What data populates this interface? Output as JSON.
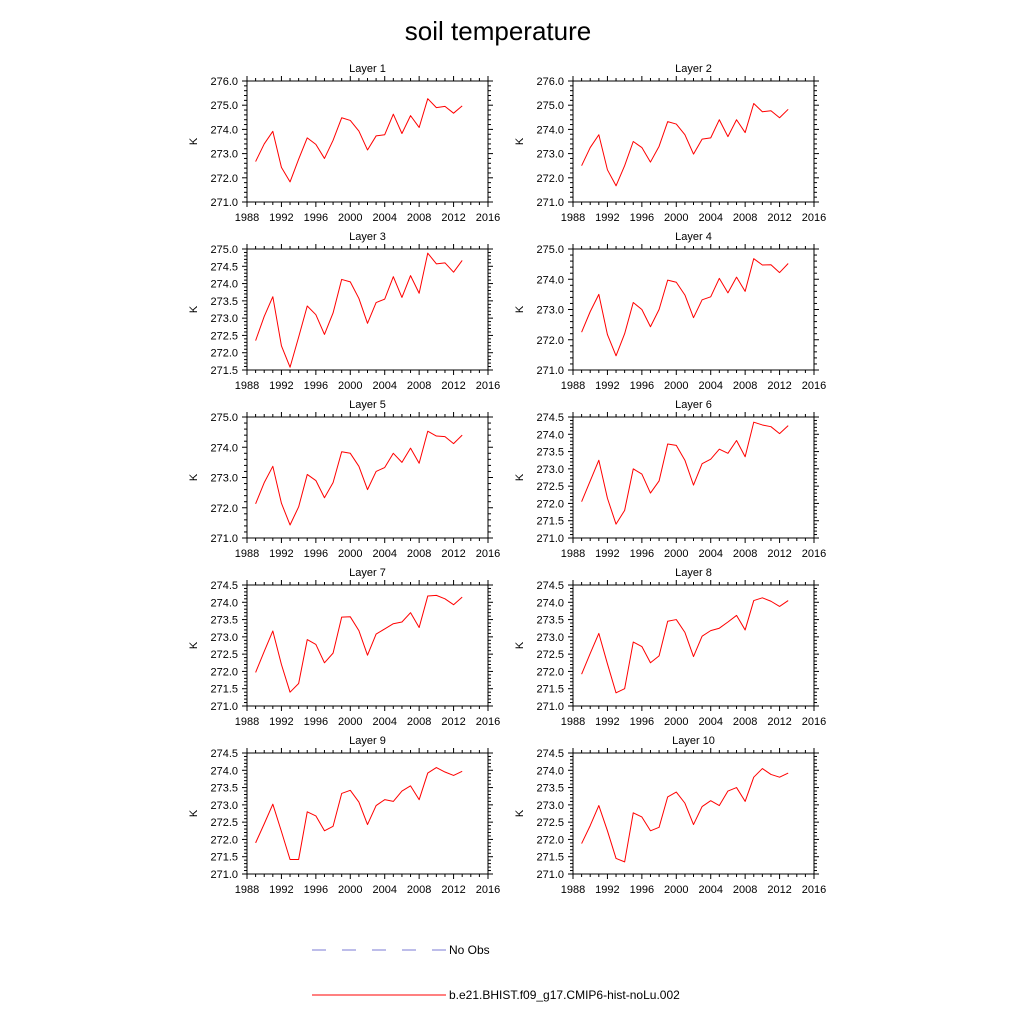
{
  "title": "soil temperature",
  "colors": {
    "model_line": "#ff0000",
    "obs_line": "#7b7bd6",
    "axis": "#000000"
  },
  "legend": [
    {
      "label": "No Obs",
      "style": "dashed",
      "color": "#7b7bd6"
    },
    {
      "label": "b.e21.BHIST.f09_g17.CMIP6-hist-noLu.002",
      "style": "solid",
      "color": "#ff0000"
    }
  ],
  "chart_data": [
    {
      "type": "line",
      "title": "Layer 1",
      "ylabel": "K",
      "x": [
        1989,
        1990,
        1991,
        1992,
        1993,
        1994,
        1995,
        1996,
        1997,
        1998,
        1999,
        2000,
        2001,
        2002,
        2003,
        2004,
        2005,
        2006,
        2007,
        2008,
        2009,
        2010,
        2011,
        2012,
        2013
      ],
      "xlim": [
        1988,
        2016
      ],
      "xticks": [
        1988,
        1992,
        1996,
        2000,
        2004,
        2008,
        2012,
        2016
      ],
      "ylim": [
        271,
        276
      ],
      "yticks": [
        "271.0",
        "272.0",
        "273.0",
        "274.0",
        "275.0",
        "276.0"
      ],
      "series": [
        {
          "name": "b.e21.BHIST.f09_g17.CMIP6-hist-noLu.002",
          "values": [
            272.67,
            273.4,
            273.92,
            272.43,
            271.83,
            272.77,
            273.65,
            273.38,
            272.8,
            273.55,
            274.48,
            274.37,
            273.93,
            273.15,
            273.73,
            273.78,
            274.63,
            273.83,
            274.57,
            274.08,
            275.27,
            274.9,
            274.95,
            274.67,
            274.97
          ]
        }
      ]
    },
    {
      "type": "line",
      "title": "Layer 2",
      "ylabel": "K",
      "x": [
        1989,
        1990,
        1991,
        1992,
        1993,
        1994,
        1995,
        1996,
        1997,
        1998,
        1999,
        2000,
        2001,
        2002,
        2003,
        2004,
        2005,
        2006,
        2007,
        2008,
        2009,
        2010,
        2011,
        2012,
        2013
      ],
      "xlim": [
        1988,
        2016
      ],
      "xticks": [
        1988,
        1992,
        1996,
        2000,
        2004,
        2008,
        2012,
        2016
      ],
      "ylim": [
        271,
        276
      ],
      "yticks": [
        "271.0",
        "272.0",
        "273.0",
        "274.0",
        "275.0",
        "276.0"
      ],
      "series": [
        {
          "name": "b.e21.BHIST.f09_g17.CMIP6-hist-noLu.002",
          "values": [
            272.5,
            273.25,
            273.78,
            272.33,
            271.67,
            272.5,
            273.5,
            273.25,
            272.65,
            273.3,
            274.32,
            274.22,
            273.78,
            272.98,
            273.6,
            273.65,
            274.4,
            273.7,
            274.4,
            273.87,
            275.07,
            274.73,
            274.77,
            274.48,
            274.83
          ]
        }
      ]
    },
    {
      "type": "line",
      "title": "Layer 3",
      "ylabel": "K",
      "x": [
        1989,
        1990,
        1991,
        1992,
        1993,
        1994,
        1995,
        1996,
        1997,
        1998,
        1999,
        2000,
        2001,
        2002,
        2003,
        2004,
        2005,
        2006,
        2007,
        2008,
        2009,
        2010,
        2011,
        2012,
        2013
      ],
      "xlim": [
        1988,
        2016
      ],
      "xticks": [
        1988,
        1992,
        1996,
        2000,
        2004,
        2008,
        2012,
        2016
      ],
      "ylim": [
        271.5,
        275
      ],
      "yticks": [
        "271.5",
        "272.0",
        "272.5",
        "273.0",
        "273.5",
        "274.0",
        "274.5",
        "275.0"
      ],
      "series": [
        {
          "name": "b.e21.BHIST.f09_g17.CMIP6-hist-noLu.002",
          "values": [
            272.35,
            273.05,
            273.62,
            272.2,
            271.58,
            272.45,
            273.35,
            273.1,
            272.53,
            273.15,
            274.12,
            274.05,
            273.57,
            272.85,
            273.45,
            273.55,
            274.2,
            273.6,
            274.23,
            273.72,
            274.88,
            274.57,
            274.6,
            274.33,
            274.67
          ]
        }
      ]
    },
    {
      "type": "line",
      "title": "Layer 4",
      "ylabel": "K",
      "x": [
        1989,
        1990,
        1991,
        1992,
        1993,
        1994,
        1995,
        1996,
        1997,
        1998,
        1999,
        2000,
        2001,
        2002,
        2003,
        2004,
        2005,
        2006,
        2007,
        2008,
        2009,
        2010,
        2011,
        2012,
        2013
      ],
      "xlim": [
        1988,
        2016
      ],
      "xticks": [
        1988,
        1992,
        1996,
        2000,
        2004,
        2008,
        2012,
        2016
      ],
      "ylim": [
        271,
        275
      ],
      "yticks": [
        "271.0",
        "272.0",
        "273.0",
        "274.0",
        "275.0"
      ],
      "series": [
        {
          "name": "b.e21.BHIST.f09_g17.CMIP6-hist-noLu.002",
          "values": [
            272.25,
            272.93,
            273.5,
            272.17,
            271.47,
            272.2,
            273.23,
            273.0,
            272.43,
            273.0,
            273.97,
            273.9,
            273.48,
            272.73,
            273.32,
            273.42,
            274.03,
            273.55,
            274.07,
            273.6,
            274.68,
            274.47,
            274.48,
            274.22,
            274.52
          ]
        }
      ]
    },
    {
      "type": "line",
      "title": "Layer 5",
      "ylabel": "K",
      "x": [
        1989,
        1990,
        1991,
        1992,
        1993,
        1994,
        1995,
        1996,
        1997,
        1998,
        1999,
        2000,
        2001,
        2002,
        2003,
        2004,
        2005,
        2006,
        2007,
        2008,
        2009,
        2010,
        2011,
        2012,
        2013
      ],
      "xlim": [
        1988,
        2016
      ],
      "xticks": [
        1988,
        1992,
        1996,
        2000,
        2004,
        2008,
        2012,
        2016
      ],
      "ylim": [
        271,
        275
      ],
      "yticks": [
        "271.0",
        "272.0",
        "273.0",
        "274.0",
        "275.0"
      ],
      "series": [
        {
          "name": "b.e21.BHIST.f09_g17.CMIP6-hist-noLu.002",
          "values": [
            272.13,
            272.83,
            273.37,
            272.15,
            271.43,
            272.03,
            273.1,
            272.9,
            272.33,
            272.83,
            273.85,
            273.8,
            273.37,
            272.6,
            273.2,
            273.33,
            273.8,
            273.5,
            273.97,
            273.47,
            274.53,
            274.37,
            274.35,
            274.12,
            274.4
          ]
        }
      ]
    },
    {
      "type": "line",
      "title": "Layer 6",
      "ylabel": "K",
      "x": [
        1989,
        1990,
        1991,
        1992,
        1993,
        1994,
        1995,
        1996,
        1997,
        1998,
        1999,
        2000,
        2001,
        2002,
        2003,
        2004,
        2005,
        2006,
        2007,
        2008,
        2009,
        2010,
        2011,
        2012,
        2013
      ],
      "xlim": [
        1988,
        2016
      ],
      "xticks": [
        1988,
        1992,
        1996,
        2000,
        2004,
        2008,
        2012,
        2016
      ],
      "ylim": [
        271,
        274.5
      ],
      "yticks": [
        "271.0",
        "271.5",
        "272.0",
        "272.5",
        "273.0",
        "273.5",
        "274.0",
        "274.5"
      ],
      "series": [
        {
          "name": "b.e21.BHIST.f09_g17.CMIP6-hist-noLu.002",
          "values": [
            272.05,
            272.65,
            273.25,
            272.15,
            271.4,
            271.8,
            273.0,
            272.85,
            272.3,
            272.65,
            273.72,
            273.68,
            273.25,
            272.53,
            273.15,
            273.28,
            273.57,
            273.45,
            273.82,
            273.35,
            274.35,
            274.27,
            274.22,
            274.02,
            274.25
          ]
        }
      ]
    },
    {
      "type": "line",
      "title": "Layer 7",
      "ylabel": "K",
      "x": [
        1989,
        1990,
        1991,
        1992,
        1993,
        1994,
        1995,
        1996,
        1997,
        1998,
        1999,
        2000,
        2001,
        2002,
        2003,
        2004,
        2005,
        2006,
        2007,
        2008,
        2009,
        2010,
        2011,
        2012,
        2013
      ],
      "xlim": [
        1988,
        2016
      ],
      "xticks": [
        1988,
        1992,
        1996,
        2000,
        2004,
        2008,
        2012,
        2016
      ],
      "ylim": [
        271,
        274.5
      ],
      "yticks": [
        "271.0",
        "271.5",
        "272.0",
        "272.5",
        "273.0",
        "273.5",
        "274.0",
        "274.5"
      ],
      "series": [
        {
          "name": "b.e21.BHIST.f09_g17.CMIP6-hist-noLu.002",
          "values": [
            271.97,
            272.58,
            273.17,
            272.2,
            271.4,
            271.65,
            272.92,
            272.78,
            272.25,
            272.53,
            273.57,
            273.58,
            273.18,
            272.47,
            273.08,
            273.23,
            273.38,
            273.43,
            273.7,
            273.27,
            274.18,
            274.2,
            274.1,
            273.93,
            274.15
          ]
        }
      ]
    },
    {
      "type": "line",
      "title": "Layer 8",
      "ylabel": "K",
      "x": [
        1989,
        1990,
        1991,
        1992,
        1993,
        1994,
        1995,
        1996,
        1997,
        1998,
        1999,
        2000,
        2001,
        2002,
        2003,
        2004,
        2005,
        2006,
        2007,
        2008,
        2009,
        2010,
        2011,
        2012,
        2013
      ],
      "xlim": [
        1988,
        2016
      ],
      "xticks": [
        1988,
        1992,
        1996,
        2000,
        2004,
        2008,
        2012,
        2016
      ],
      "ylim": [
        271,
        274.5
      ],
      "yticks": [
        "271.0",
        "271.5",
        "272.0",
        "272.5",
        "273.0",
        "273.5",
        "274.0",
        "274.5"
      ],
      "series": [
        {
          "name": "b.e21.BHIST.f09_g17.CMIP6-hist-noLu.002",
          "values": [
            271.92,
            272.52,
            273.1,
            272.22,
            271.38,
            271.5,
            272.85,
            272.72,
            272.25,
            272.45,
            273.45,
            273.5,
            273.13,
            272.43,
            273.02,
            273.18,
            273.25,
            273.43,
            273.62,
            273.2,
            274.05,
            274.13,
            274.03,
            273.88,
            274.05
          ]
        }
      ]
    },
    {
      "type": "line",
      "title": "Layer 9",
      "ylabel": "K",
      "x": [
        1989,
        1990,
        1991,
        1992,
        1993,
        1994,
        1995,
        1996,
        1997,
        1998,
        1999,
        2000,
        2001,
        2002,
        2003,
        2004,
        2005,
        2006,
        2007,
        2008,
        2009,
        2010,
        2011,
        2012,
        2013
      ],
      "xlim": [
        1988,
        2016
      ],
      "xticks": [
        1988,
        1992,
        1996,
        2000,
        2004,
        2008,
        2012,
        2016
      ],
      "ylim": [
        271,
        274.5
      ],
      "yticks": [
        "271.0",
        "271.5",
        "272.0",
        "272.5",
        "273.0",
        "273.5",
        "274.0",
        "274.5"
      ],
      "series": [
        {
          "name": "b.e21.BHIST.f09_g17.CMIP6-hist-noLu.002",
          "values": [
            271.9,
            272.45,
            273.02,
            272.23,
            271.42,
            271.42,
            272.8,
            272.68,
            272.25,
            272.38,
            273.33,
            273.42,
            273.08,
            272.43,
            272.98,
            273.15,
            273.1,
            273.4,
            273.55,
            273.15,
            273.92,
            274.08,
            273.95,
            273.85,
            273.97
          ]
        }
      ]
    },
    {
      "type": "line",
      "title": "Layer 10",
      "ylabel": "K",
      "x": [
        1989,
        1990,
        1991,
        1992,
        1993,
        1994,
        1995,
        1996,
        1997,
        1998,
        1999,
        2000,
        2001,
        2002,
        2003,
        2004,
        2005,
        2006,
        2007,
        2008,
        2009,
        2010,
        2011,
        2012,
        2013
      ],
      "xlim": [
        1988,
        2016
      ],
      "xticks": [
        1988,
        1992,
        1996,
        2000,
        2004,
        2008,
        2012,
        2016
      ],
      "ylim": [
        271,
        274.5
      ],
      "yticks": [
        "271.0",
        "271.5",
        "272.0",
        "272.5",
        "273.0",
        "273.5",
        "274.0",
        "274.5"
      ],
      "series": [
        {
          "name": "b.e21.BHIST.f09_g17.CMIP6-hist-noLu.002",
          "values": [
            271.88,
            272.4,
            272.98,
            272.25,
            271.45,
            271.35,
            272.77,
            272.65,
            272.25,
            272.35,
            273.23,
            273.37,
            273.05,
            272.43,
            272.95,
            273.12,
            272.98,
            273.4,
            273.5,
            273.1,
            273.8,
            274.05,
            273.88,
            273.8,
            273.92
          ]
        }
      ]
    }
  ]
}
